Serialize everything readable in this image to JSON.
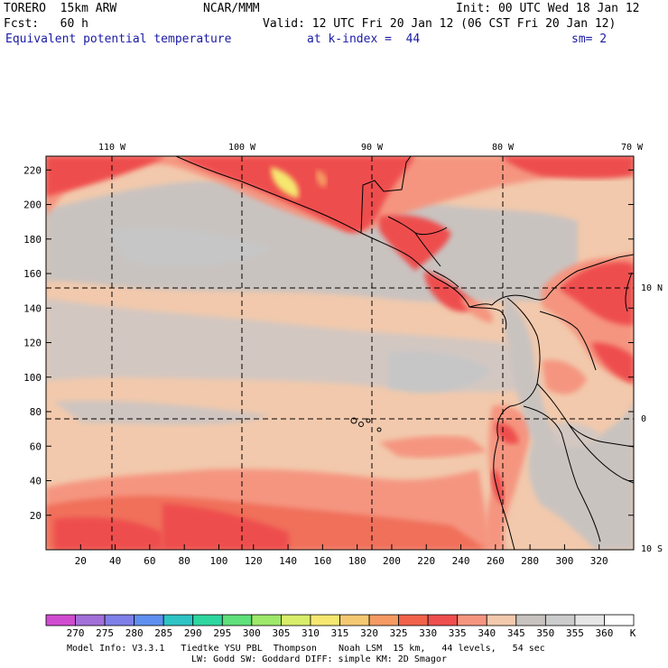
{
  "header": {
    "model": "TORERO  15km ARW",
    "org": "NCAR/MMM",
    "init": "Init: 00 UTC Wed 18 Jan 12",
    "fcst": "Fcst:   60 h",
    "valid": "Valid: 12 UTC Fri 20 Jan 12 (06 CST Fri 20 Jan 12)",
    "field": "Equivalent potential temperature",
    "level": "at k-index =  44",
    "smooth": "sm= 2"
  },
  "axes": {
    "lon_labels": [
      "110 W",
      "100 W",
      "90 W",
      "80 W",
      "70 W"
    ],
    "lat_labels": [
      "10 N",
      "0",
      "10 S"
    ],
    "y_ticks": [
      "220",
      "200",
      "180",
      "160",
      "140",
      "120",
      "100",
      "80",
      "60",
      "40",
      "20"
    ],
    "x_ticks": [
      "20",
      "40",
      "60",
      "80",
      "100",
      "120",
      "140",
      "160",
      "180",
      "200",
      "220",
      "240",
      "260",
      "280",
      "300",
      "320"
    ]
  },
  "colorbar": {
    "labels": [
      "270",
      "275",
      "280",
      "285",
      "290",
      "295",
      "300",
      "305",
      "310",
      "315",
      "320",
      "325",
      "330",
      "335",
      "340",
      "345",
      "350",
      "355",
      "360"
    ],
    "unit": "K",
    "colors": [
      "#d04ccf",
      "#a36fd8",
      "#7f7fe8",
      "#5f8ff0",
      "#2ec4c4",
      "#2ed6a0",
      "#5fe07a",
      "#9ee86a",
      "#d8ee6a",
      "#f5e870",
      "#f3c870",
      "#f59a62",
      "#f0624a",
      "#ee4e4e",
      "#f59580",
      "#f2c9ac",
      "#c9c3c0",
      "#cccccc",
      "#e6e6e6",
      "#ffffff"
    ]
  },
  "footer": {
    "line1": "Model Info: V3.3.1   Tiedtke YSU PBL  Thompson    Noah LSM  15 km,   44 levels,   54 sec",
    "line2": "LW: Godd SW: Goddard DIFF: simple KM: 2D Smagor"
  }
}
